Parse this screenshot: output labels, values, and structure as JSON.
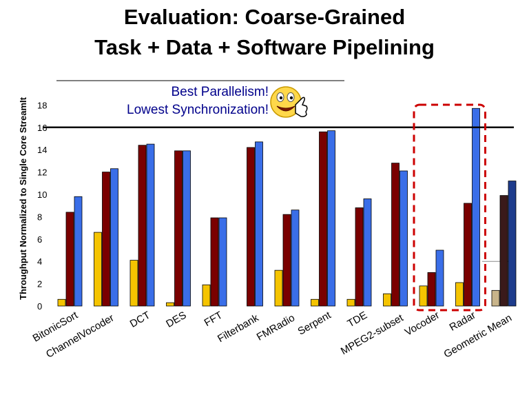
{
  "slide": {
    "title_line1": "Evaluation: Coarse-Grained",
    "title_line2": "Task + Data + Software Pipelining",
    "callout_line1": "Best Parallelism!",
    "callout_line2": "Lowest Synchronization!"
  },
  "colors": {
    "series1": "#f5c400",
    "series2": "#7a0000",
    "series3": "#3a6ee8",
    "mean_series1": "#c8b48a",
    "mean_series2": "#3a1a1a",
    "mean_series3": "#1e3c8c",
    "highlight_box": "#cc0000",
    "callout_text": "#00008b"
  },
  "icons": {
    "callout_emoji": "smiley-thumbs-up-icon"
  },
  "chart_data": {
    "type": "bar",
    "ylabel": "Throughput Normalized to Single Core StreamIt",
    "ylim": [
      0,
      18
    ],
    "yticks": [
      0,
      2,
      4,
      6,
      8,
      10,
      12,
      14,
      16,
      18
    ],
    "reference_line": 16,
    "grid": false,
    "highlighted_categories": [
      "Vocoder",
      "Radar"
    ],
    "categories": [
      "BitonicSort",
      "ChannelVocoder",
      "DCT",
      "DES",
      "FFT",
      "Filterbank",
      "FMRadio",
      "Serpent",
      "TDE",
      "MPEG2-subset",
      "Vocoder",
      "Radar",
      "Geometric Mean"
    ],
    "series": [
      {
        "values": [
          0.6,
          6.6,
          4.1,
          0.3,
          1.9,
          0,
          3.2,
          0.6,
          0.6,
          1.1,
          1.8,
          2.1,
          1.4
        ]
      },
      {
        "values": [
          8.4,
          12.0,
          14.4,
          13.9,
          7.9,
          14.2,
          8.2,
          15.6,
          8.8,
          12.8,
          3.0,
          9.2,
          9.9
        ]
      },
      {
        "values": [
          9.8,
          12.3,
          14.5,
          13.9,
          7.9,
          14.7,
          8.6,
          15.7,
          9.6,
          12.1,
          5.0,
          17.7,
          11.2
        ]
      }
    ]
  }
}
